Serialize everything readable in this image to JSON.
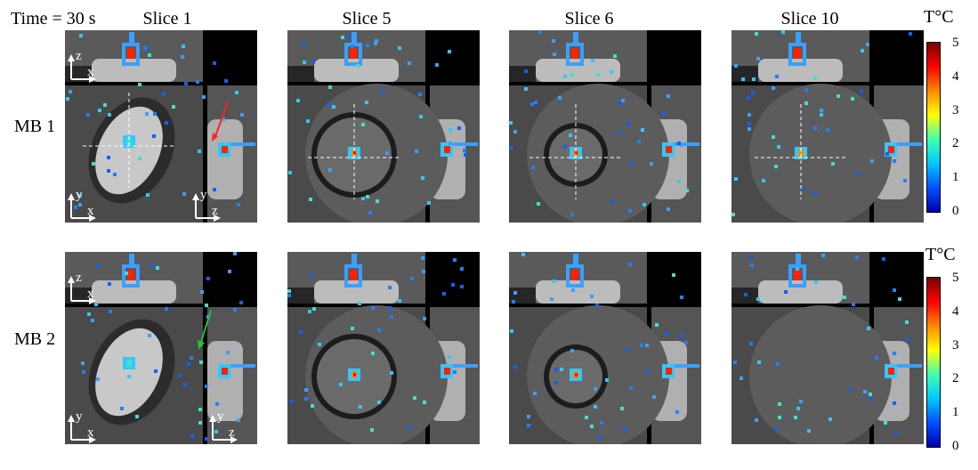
{
  "header": {
    "time_label": "Time = 30 s",
    "slices": [
      "Slice 1",
      "Slice 5",
      "Slice 6",
      "Slice 10"
    ]
  },
  "rows": [
    {
      "label": "MB 1",
      "colorbar_title": "T°C",
      "has_red_arrow": true
    },
    {
      "label": "MB 2",
      "colorbar_title": "T°C",
      "has_green_arrow": true
    }
  ],
  "colorbar": {
    "ticks": [
      "5",
      "4",
      "3",
      "2",
      "1",
      "0"
    ],
    "colors": [
      "#7a0000",
      "#ff0000",
      "#ff8800",
      "#ffff00",
      "#40ffb0",
      "#00c8ff",
      "#0050ff",
      "#0000b0"
    ]
  },
  "axes": {
    "xz_top": [
      "z",
      "x"
    ],
    "xy_main": [
      "y",
      "x"
    ],
    "yz_side": [
      "y",
      "z"
    ]
  },
  "noise_color": "#3a8aff"
}
